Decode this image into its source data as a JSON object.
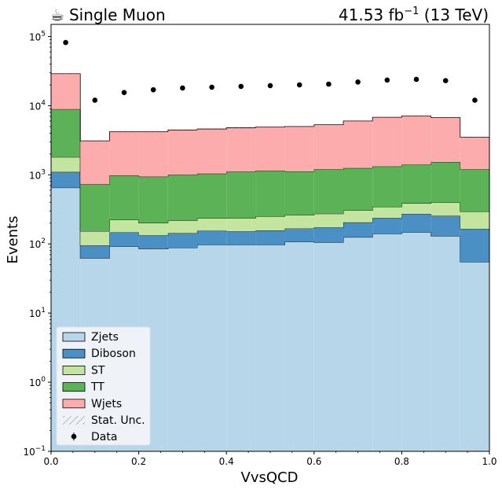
{
  "header": {
    "left_icon": "coffee-cup-icon",
    "left_glyph": "☕",
    "left_title": "Single Muon",
    "right_lumi": "41.53 fb",
    "right_exp": "−1",
    "right_energy": " (13 TeV)"
  },
  "chart_data": {
    "type": "histogram-stacked",
    "xlabel": "VvsQCD",
    "ylabel": "Events",
    "xlim": [
      0.0,
      1.0
    ],
    "ylim": [
      0.1,
      150000
    ],
    "yscale": "log",
    "xticks": [
      0.0,
      0.2,
      0.4,
      0.6,
      0.8,
      1.0
    ],
    "xtick_labels": [
      "0.0",
      "0.2",
      "0.4",
      "0.6",
      "0.8",
      "1.0"
    ],
    "yticks": [
      0.1,
      1,
      10,
      100,
      1000,
      10000,
      100000
    ],
    "ytick_base": "10",
    "ytick_exps": [
      "−1",
      "0",
      "1",
      "2",
      "3",
      "4",
      "5"
    ],
    "bin_edges": [
      0.0,
      0.0667,
      0.1333,
      0.2,
      0.2667,
      0.3333,
      0.4,
      0.4667,
      0.5333,
      0.6,
      0.6667,
      0.7333,
      0.8,
      0.8667,
      0.9333,
      1.0
    ],
    "series": [
      {
        "name": "Zjets",
        "color": "#b8d6ea",
        "values": [
          650,
          62,
          92,
          85,
          88,
          97,
          97,
          97,
          107,
          105,
          125,
          140,
          147,
          130,
          55
        ]
      },
      {
        "name": "Diboson",
        "color": "#4a90c4",
        "values": [
          450,
          33,
          55,
          48,
          55,
          58,
          55,
          60,
          60,
          68,
          80,
          97,
          125,
          125,
          110
        ]
      },
      {
        "name": "ST",
        "color": "#c4e5a0",
        "values": [
          700,
          58,
          77,
          68,
          75,
          80,
          85,
          93,
          95,
          100,
          100,
          108,
          115,
          145,
          130
        ]
      },
      {
        "name": "TT",
        "color": "#5cb257",
        "values": [
          7100,
          577,
          756,
          739,
          782,
          805,
          873,
          900,
          858,
          927,
          945,
          975,
          1013,
          1130,
          905
        ]
      },
      {
        "name": "Wjets",
        "color": "#fcacac",
        "values": [
          20100,
          2370,
          3220,
          3260,
          3450,
          3560,
          3690,
          3750,
          3880,
          4100,
          4750,
          5480,
          5700,
          5200,
          2300
        ]
      }
    ],
    "data": {
      "name": "Data",
      "x": [
        0.0333,
        0.1,
        0.1667,
        0.2333,
        0.3,
        0.3667,
        0.4333,
        0.5,
        0.5667,
        0.6333,
        0.7,
        0.7667,
        0.8333,
        0.9,
        0.9667
      ],
      "y": [
        82000,
        12000,
        15500,
        17000,
        18000,
        18500,
        19000,
        19500,
        20000,
        20500,
        22000,
        23500,
        24000,
        23000,
        12000
      ]
    },
    "legend": {
      "placement": "lower-left",
      "entries": [
        "Zjets",
        "Diboson",
        "ST",
        "TT",
        "Wjets",
        "Stat. Unc.",
        "Data"
      ]
    }
  }
}
